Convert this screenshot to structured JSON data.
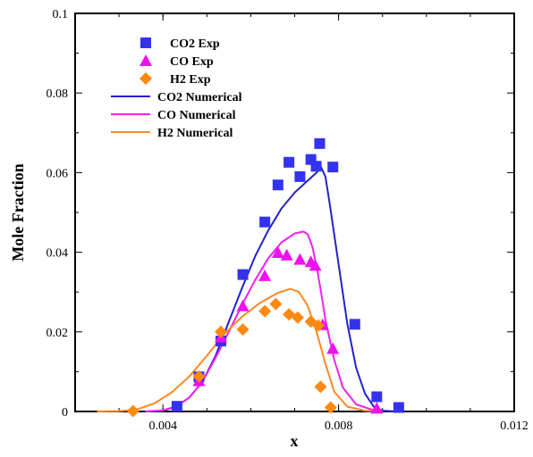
{
  "chart_data": {
    "type": "scatter",
    "title": "",
    "xlabel": "x",
    "ylabel": "Mole Fraction",
    "xlim": [
      0.002,
      0.012
    ],
    "ylim": [
      0,
      0.1
    ],
    "x_ticks": [
      {
        "value": 0.004,
        "label": "0.004"
      },
      {
        "value": 0.008,
        "label": "0.008"
      },
      {
        "value": 0.012,
        "label": "0.012"
      }
    ],
    "y_ticks": [
      {
        "value": 0,
        "label": "0"
      },
      {
        "value": 0.02,
        "label": "0.02"
      },
      {
        "value": 0.04,
        "label": "0.04"
      },
      {
        "value": 0.06,
        "label": "0.06"
      },
      {
        "value": 0.08,
        "label": "0.08"
      },
      {
        "value": 0.1,
        "label": "0.1"
      }
    ],
    "grid": false,
    "legend_position": "top-left",
    "series": [
      {
        "name": "CO2 Exp",
        "kind": "markers",
        "marker": "square",
        "color": "#3333ee",
        "points": [
          [
            0.00432,
            0.0013
          ],
          [
            0.00482,
            0.0087
          ],
          [
            0.00532,
            0.0177
          ],
          [
            0.00582,
            0.0344
          ],
          [
            0.00632,
            0.0476
          ],
          [
            0.00662,
            0.0569
          ],
          [
            0.00687,
            0.0626
          ],
          [
            0.00712,
            0.059
          ],
          [
            0.00737,
            0.0633
          ],
          [
            0.00749,
            0.0616
          ],
          [
            0.00757,
            0.0673
          ],
          [
            0.00787,
            0.0614
          ],
          [
            0.00837,
            0.0219
          ],
          [
            0.00887,
            0.0037
          ],
          [
            0.00937,
            0.001
          ]
        ]
      },
      {
        "name": "CO Exp",
        "kind": "markers",
        "marker": "triangle",
        "color": "#ee11ee",
        "points": [
          [
            0.00482,
            0.0077
          ],
          [
            0.00532,
            0.0187
          ],
          [
            0.00582,
            0.0265
          ],
          [
            0.00632,
            0.0341
          ],
          [
            0.00662,
            0.0399
          ],
          [
            0.00682,
            0.0393
          ],
          [
            0.00712,
            0.0382
          ],
          [
            0.00737,
            0.0376
          ],
          [
            0.00747,
            0.0367
          ],
          [
            0.00764,
            0.0218
          ],
          [
            0.00787,
            0.0158
          ],
          [
            0.00887,
            0.0008
          ]
        ]
      },
      {
        "name": "H2 Exp",
        "kind": "markers",
        "marker": "diamond",
        "color": "#ff8811",
        "points": [
          [
            0.00332,
            0.0001
          ],
          [
            0.00482,
            0.0088
          ],
          [
            0.00532,
            0.02
          ],
          [
            0.00582,
            0.0206
          ],
          [
            0.00632,
            0.0252
          ],
          [
            0.00657,
            0.027
          ],
          [
            0.00687,
            0.0244
          ],
          [
            0.00707,
            0.0236
          ],
          [
            0.00737,
            0.0226
          ],
          [
            0.00754,
            0.0216
          ],
          [
            0.00759,
            0.0062
          ],
          [
            0.00782,
            0.001
          ]
        ]
      },
      {
        "name": "CO2 Numerical",
        "kind": "line",
        "color": "#2222cc",
        "points": [
          [
            0.0036,
            0.0
          ],
          [
            0.004,
            0.0002
          ],
          [
            0.0043,
            0.0012
          ],
          [
            0.0046,
            0.0035
          ],
          [
            0.0049,
            0.0075
          ],
          [
            0.0052,
            0.014
          ],
          [
            0.0055,
            0.0225
          ],
          [
            0.0058,
            0.031
          ],
          [
            0.0061,
            0.039
          ],
          [
            0.0064,
            0.0455
          ],
          [
            0.0067,
            0.051
          ],
          [
            0.007,
            0.055
          ],
          [
            0.0073,
            0.058
          ],
          [
            0.0075,
            0.06
          ],
          [
            0.0076,
            0.0614
          ],
          [
            0.0077,
            0.059
          ],
          [
            0.0078,
            0.052
          ],
          [
            0.008,
            0.037
          ],
          [
            0.0082,
            0.022
          ],
          [
            0.0084,
            0.011
          ],
          [
            0.0086,
            0.0045
          ],
          [
            0.0088,
            0.0012
          ],
          [
            0.009,
            0.0002
          ],
          [
            0.0093,
            0.0
          ]
        ]
      },
      {
        "name": "CO Numerical",
        "kind": "line",
        "color": "#ee22ee",
        "points": [
          [
            0.0036,
            0.0
          ],
          [
            0.004,
            0.0003
          ],
          [
            0.0043,
            0.0013
          ],
          [
            0.0046,
            0.0035
          ],
          [
            0.0049,
            0.0075
          ],
          [
            0.0052,
            0.0135
          ],
          [
            0.0055,
            0.02
          ],
          [
            0.0058,
            0.0268
          ],
          [
            0.0061,
            0.033
          ],
          [
            0.0064,
            0.0385
          ],
          [
            0.0067,
            0.0425
          ],
          [
            0.007,
            0.0447
          ],
          [
            0.0072,
            0.0452
          ],
          [
            0.0073,
            0.0445
          ],
          [
            0.0074,
            0.0415
          ],
          [
            0.0075,
            0.0365
          ],
          [
            0.0076,
            0.03
          ],
          [
            0.0077,
            0.023
          ],
          [
            0.0079,
            0.013
          ],
          [
            0.0081,
            0.006
          ],
          [
            0.0084,
            0.0018
          ],
          [
            0.0088,
            0.0003
          ],
          [
            0.009,
            0.0
          ]
        ]
      },
      {
        "name": "H2 Numerical",
        "kind": "line",
        "color": "#ff8822",
        "points": [
          [
            0.0025,
            0.0
          ],
          [
            0.003,
            0.0001
          ],
          [
            0.0034,
            0.0005
          ],
          [
            0.0038,
            0.002
          ],
          [
            0.0042,
            0.0048
          ],
          [
            0.0046,
            0.0088
          ],
          [
            0.005,
            0.014
          ],
          [
            0.0054,
            0.0195
          ],
          [
            0.0058,
            0.0238
          ],
          [
            0.0062,
            0.0272
          ],
          [
            0.0066,
            0.0297
          ],
          [
            0.0069,
            0.0308
          ],
          [
            0.0071,
            0.03
          ],
          [
            0.0073,
            0.0265
          ],
          [
            0.0075,
            0.02
          ],
          [
            0.0077,
            0.012
          ],
          [
            0.0079,
            0.005
          ],
          [
            0.0082,
            0.0012
          ],
          [
            0.0086,
            0.0002
          ],
          [
            0.009,
            0.0
          ]
        ]
      }
    ]
  }
}
